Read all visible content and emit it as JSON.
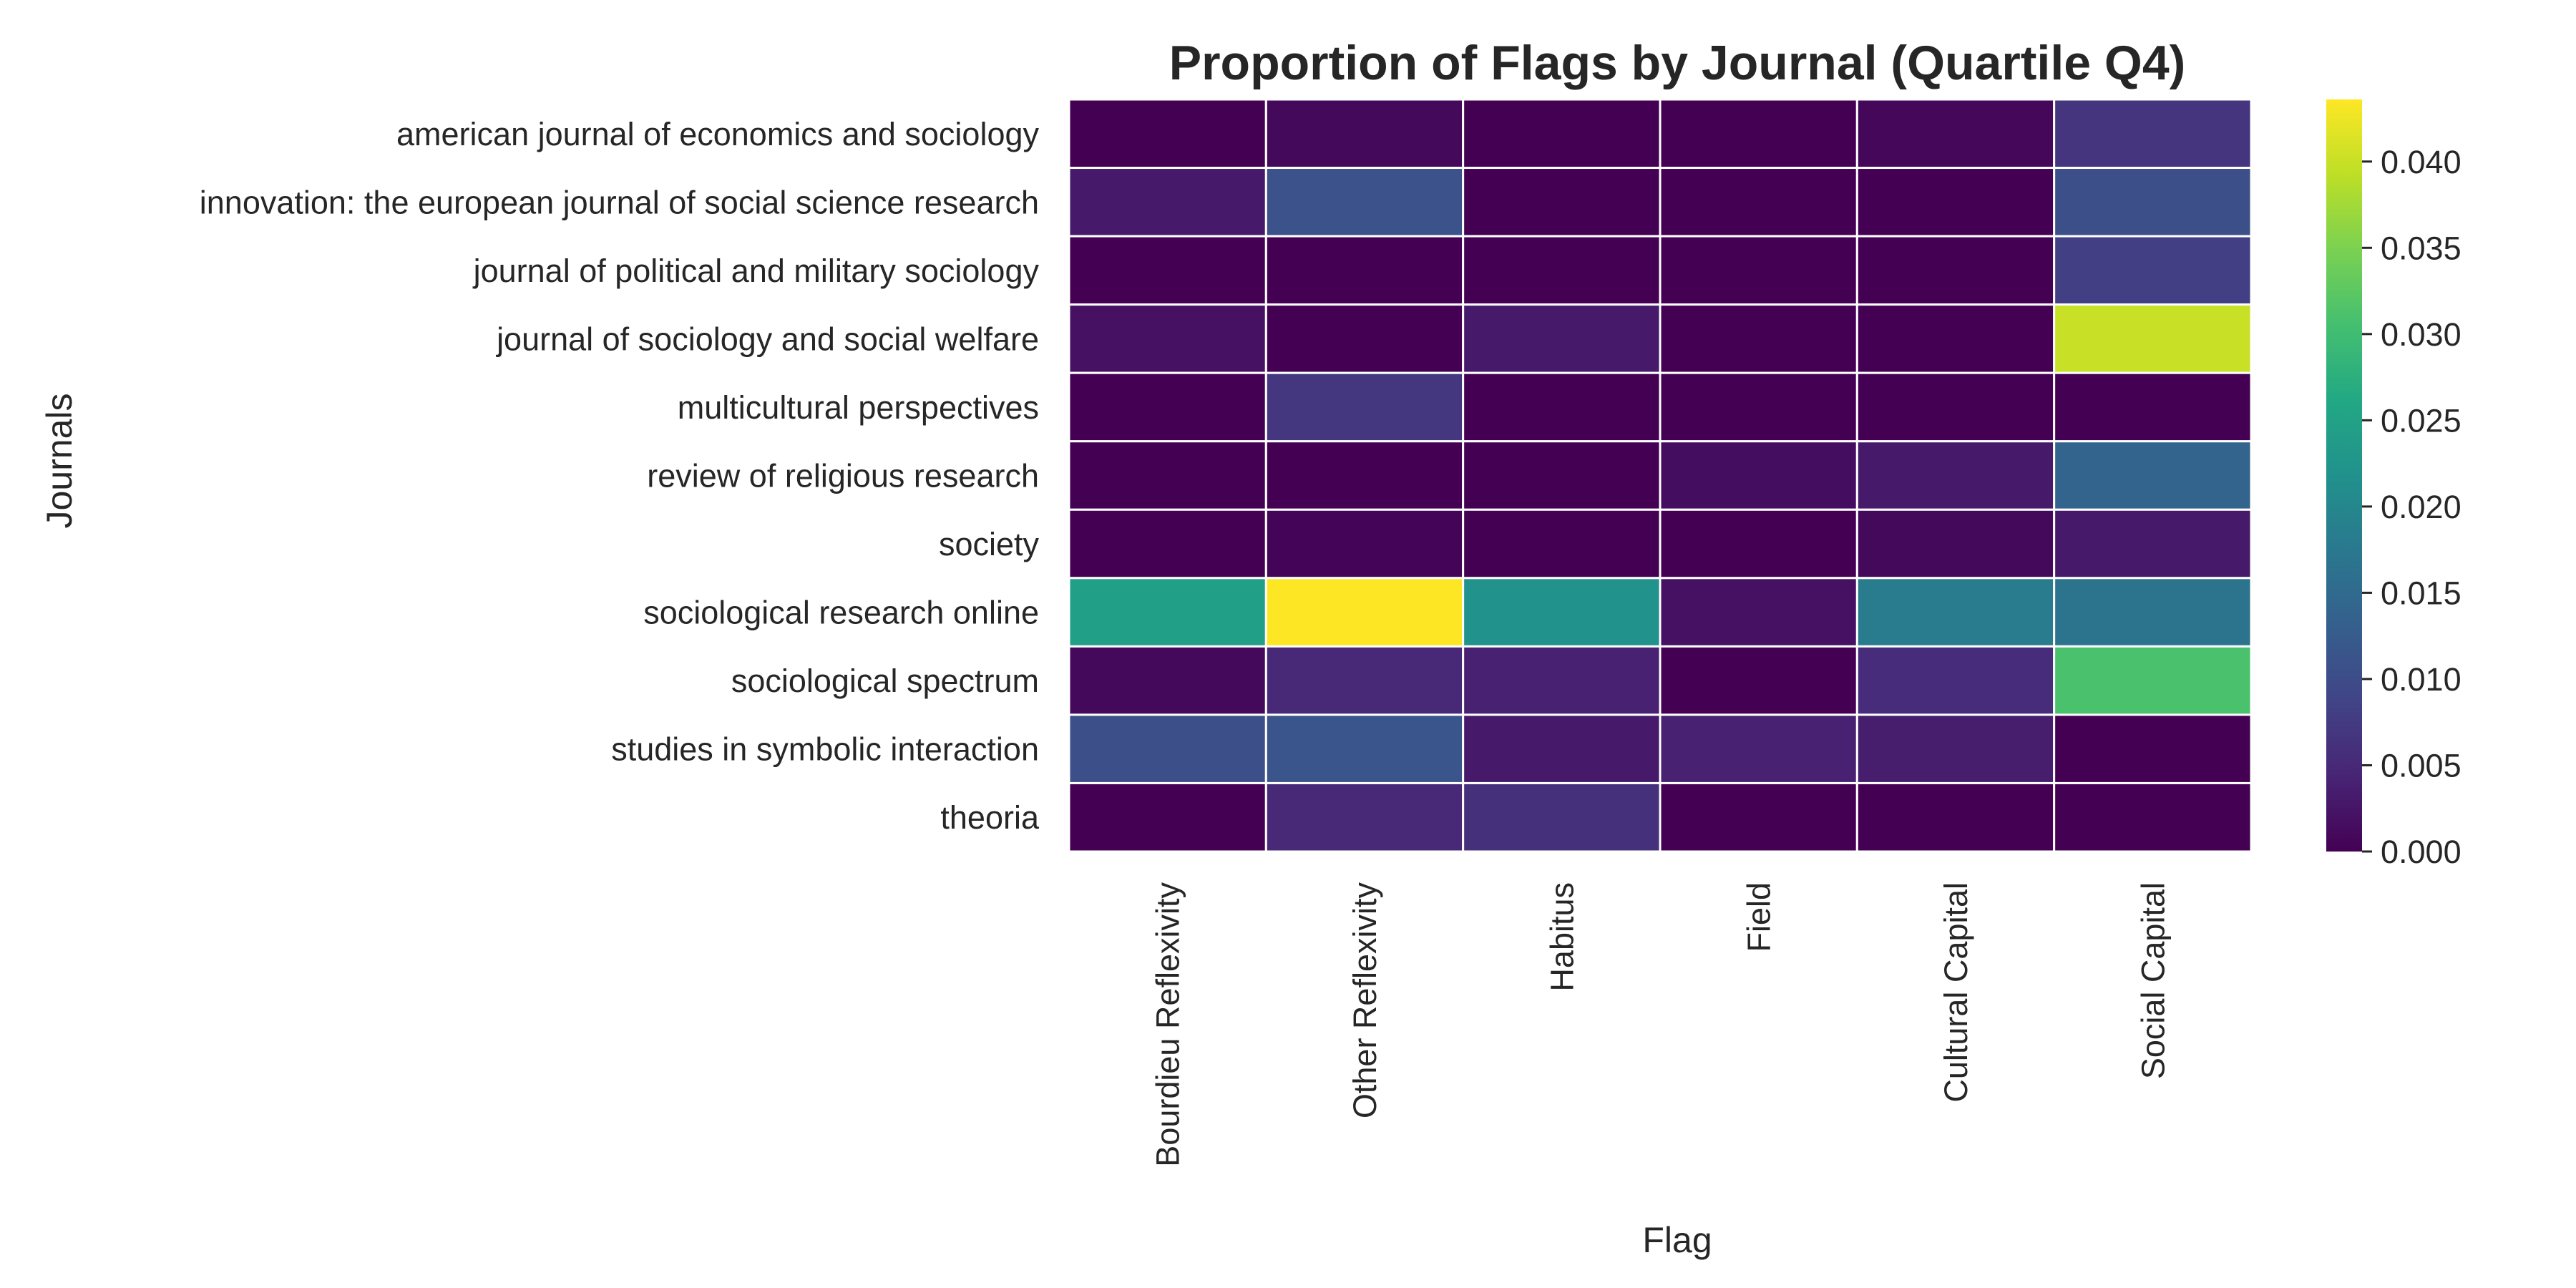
{
  "chart_data": {
    "type": "heatmap",
    "title": "Proportion of Flags by Journal (Quartile Q4)",
    "xlabel": "Flag",
    "ylabel": "Journals",
    "columns": [
      "Bourdieu Reflexivity",
      "Other Reflexivity",
      "Habitus",
      "Field",
      "Cultural Capital",
      "Social Capital"
    ],
    "rows": [
      "american journal of economics and sociology",
      "innovation: the european journal of social science research",
      "journal of political and military sociology",
      "journal of sociology and social welfare",
      "multicultural perspectives",
      "review of religious research",
      "society",
      "sociological research online",
      "sociological spectrum",
      "studies in symbolic interaction",
      "theoria"
    ],
    "values": [
      [
        0.0,
        0.001,
        0.0,
        0.0,
        0.0007,
        0.0065
      ],
      [
        0.003,
        0.011,
        0.0,
        0.0,
        0.0,
        0.0105
      ],
      [
        0.0,
        0.0,
        0.0,
        0.0,
        0.0,
        0.008
      ],
      [
        0.002,
        0.0,
        0.003,
        0.0,
        0.0,
        0.04
      ],
      [
        0.0,
        0.007,
        0.0,
        0.0,
        0.0,
        0.0
      ],
      [
        0.0,
        0.0,
        0.0,
        0.0015,
        0.003,
        0.014
      ],
      [
        0.0,
        0.0005,
        0.0,
        0.0,
        0.001,
        0.003
      ],
      [
        0.0245,
        0.0436,
        0.022,
        0.002,
        0.018,
        0.0165
      ],
      [
        0.001,
        0.005,
        0.004,
        0.0,
        0.0055,
        0.031
      ],
      [
        0.0105,
        0.0115,
        0.003,
        0.004,
        0.0035,
        0.0
      ],
      [
        0.0,
        0.005,
        0.006,
        0.0,
        0.0,
        0.0
      ]
    ],
    "colorscale": "viridis",
    "vmin": 0,
    "vmax": 0.0436,
    "colorbar_ticks": [
      "0.000",
      "0.005",
      "0.010",
      "0.015",
      "0.020",
      "0.025",
      "0.030",
      "0.035",
      "0.040"
    ],
    "grid": false,
    "legend": "colorbar-right"
  }
}
